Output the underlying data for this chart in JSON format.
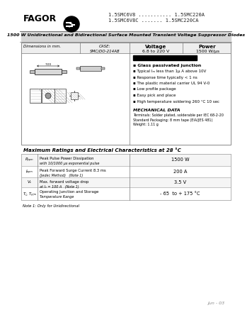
{
  "title_line1": "1.5SMC6V8 ........... 1.5SMC220A",
  "title_line2": "1.5SMC6V8C ....... 1.5SMC220CA",
  "brand": "FAGOR",
  "subtitle": "1500 W Unidirectional and Bidirectional Surface Mounted Transient Voltage Suppressor Diodes",
  "case_label": "CASE:",
  "case_value": "SMC/DO-214AB",
  "voltage_label": "Voltage",
  "voltage_value": "6.8 to 220 V",
  "power_label": "Power",
  "power_value": "1500 W/μs",
  "dim_label": "Dimensions in mm.",
  "features": [
    "Glass passivated junction",
    "Typical Iₘ less than 1μ A above 10V",
    "Response time typically < 1 ns",
    "The plastic material carrier UL 94 V-0",
    "Low profile package",
    "Easy pick and place",
    "High temperature soldering 260 °C 10 sec"
  ],
  "mech_title": "MECHANICAL DATA",
  "mech_lines": [
    "Terminals: Solder plated, solderable per IEC 68-2-20",
    "Standard Packaging: 8 mm tape (EIA/JES 481)",
    "Weight: 1.11 g"
  ],
  "table_title": "Maximum Ratings and Electrical Characteristics at 28 °C",
  "table_rows": [
    {
      "symbol": "Pₚₚₘ",
      "desc1": "Peak Pulse Power Dissipation",
      "desc2": "with 10/1000 μs exponential pulse",
      "note": "",
      "value": "1500 W"
    },
    {
      "symbol": "Iₚₚₘ",
      "desc1": "Peak Forward Surge Current 8.3 ms",
      "desc2": "(Jedec Method)",
      "note": "(Note 1)",
      "value": "200 A"
    },
    {
      "symbol": "Vₑ",
      "desc1": "Max. forward voltage drop",
      "desc2": "at Iₑ = 100 A",
      "note": "(Note 1)",
      "value": "3.5 V"
    },
    {
      "symbol": "Tⱼ, Tₚⱼₘ",
      "desc1": "Operating Junction and Storage",
      "desc2": "Temperature Range",
      "note": "",
      "value": "- 65  to + 175 °C"
    }
  ],
  "note_text": "Note 1: Only for Unidirectional",
  "date_text": "Jun - 03"
}
